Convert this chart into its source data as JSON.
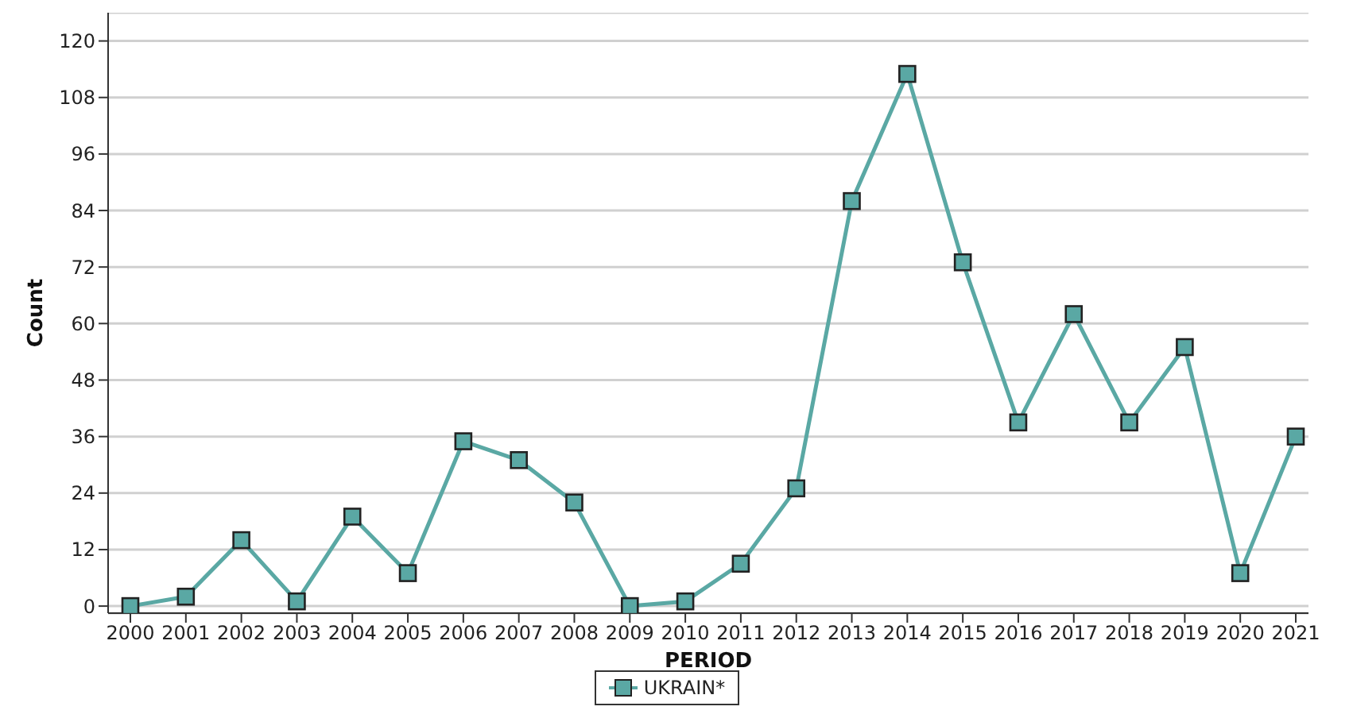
{
  "chart_data": {
    "type": "line",
    "xlabel": "PERIOD",
    "ylabel": "Count",
    "categories": [
      "2000",
      "2001",
      "2002",
      "2003",
      "2004",
      "2005",
      "2006",
      "2007",
      "2008",
      "2009",
      "2010",
      "2011",
      "2012",
      "2013",
      "2014",
      "2015",
      "2016",
      "2017",
      "2018",
      "2019",
      "2020",
      "2021"
    ],
    "series": [
      {
        "name": "UKRAIN*",
        "color": "#5aa8a4",
        "values": [
          0,
          2,
          14,
          1,
          19,
          7,
          35,
          31,
          22,
          0,
          1,
          9,
          25,
          86,
          113,
          73,
          39,
          62,
          39,
          55,
          7,
          36
        ]
      }
    ],
    "ylim": [
      -1.5,
      126
    ],
    "yticks": [
      0,
      12,
      24,
      36,
      48,
      60,
      72,
      84,
      96,
      108,
      120
    ],
    "grid": "y",
    "legend": "bottom",
    "marker": "square",
    "line_style": "solid"
  }
}
